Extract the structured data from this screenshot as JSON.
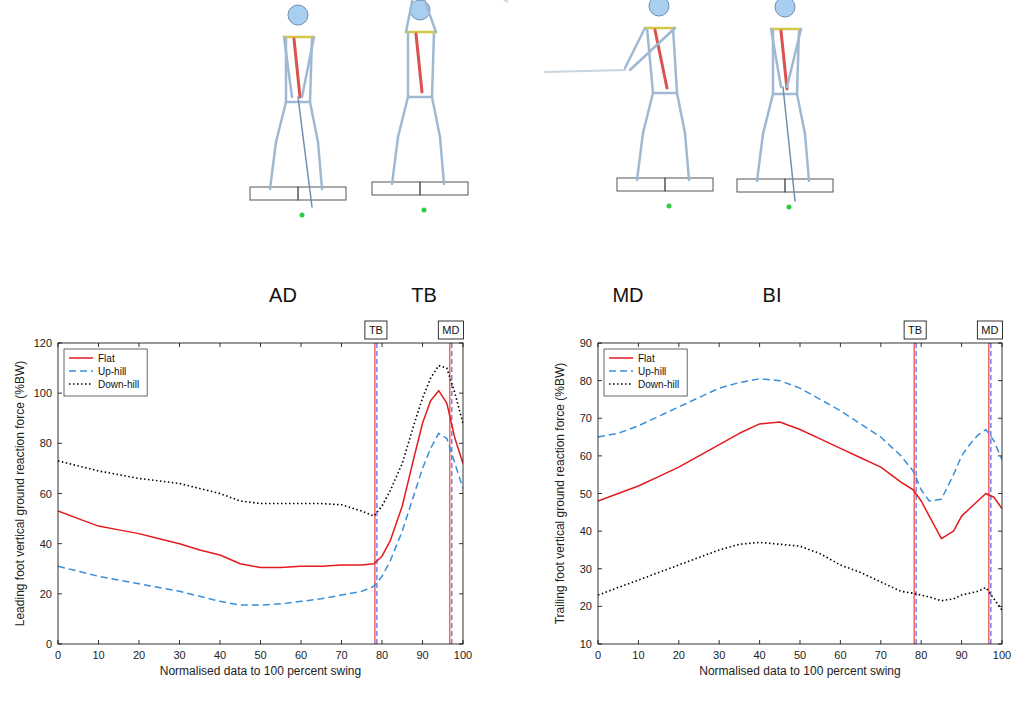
{
  "phase_labels": [
    "AD",
    "TB",
    "MD",
    "BI"
  ],
  "chart_data": [
    {
      "type": "line",
      "x_label": "Normalised data to 100 percent swing",
      "y_label": "Leading foot vertical ground reaction force (%BW)",
      "xlim": [
        0,
        100
      ],
      "xticks": [
        0,
        10,
        20,
        30,
        40,
        50,
        60,
        70,
        80,
        90,
        100
      ],
      "ylim": [
        0,
        120
      ],
      "yticks": [
        0,
        20,
        40,
        60,
        80,
        100,
        120
      ],
      "legend": "upper-left",
      "x": [
        0,
        5,
        10,
        15,
        20,
        25,
        30,
        35,
        40,
        45,
        50,
        55,
        60,
        65,
        70,
        75,
        78,
        80,
        82,
        85,
        88,
        90,
        92,
        94,
        96,
        98,
        100
      ],
      "series": [
        {
          "name": "Flat",
          "color": "#e31a1c",
          "line_style": "solid",
          "values": [
            53,
            50,
            47,
            45.5,
            44,
            42,
            40,
            37.5,
            35.5,
            32,
            30.5,
            30.5,
            31,
            31,
            31.5,
            31.5,
            32,
            35,
            41,
            55,
            75,
            88,
            97,
            101,
            96,
            82,
            72
          ]
        },
        {
          "name": "Up-hill",
          "color": "#3b8fd9",
          "line_style": "dashed",
          "values": [
            31,
            29,
            27,
            25.5,
            24,
            22.5,
            21,
            19,
            17,
            15.5,
            15.5,
            16,
            17,
            18,
            19.5,
            21,
            23,
            27,
            33,
            45,
            60,
            70,
            78,
            84,
            82,
            72,
            62
          ]
        },
        {
          "name": "Down-hill",
          "color": "#000000",
          "line_style": "dotted",
          "values": [
            73,
            71,
            69,
            67.5,
            66,
            65,
            64,
            62,
            60,
            57,
            56,
            56,
            56,
            56,
            55.5,
            53,
            51,
            55,
            61,
            72,
            88,
            98,
            106,
            111,
            110,
            100,
            88
          ]
        }
      ],
      "annotations": [
        {
          "x": 78.5,
          "label": "TB"
        },
        {
          "x": 97,
          "label": "MD"
        }
      ]
    },
    {
      "type": "line",
      "x_label": "Normalised data to 100 percent swing",
      "y_label": "Trailing foot vertical ground reaction force (%BW)",
      "xlim": [
        0,
        100
      ],
      "xticks": [
        0,
        10,
        20,
        30,
        40,
        50,
        60,
        70,
        80,
        90,
        100
      ],
      "ylim": [
        10,
        90
      ],
      "yticks": [
        10,
        20,
        30,
        40,
        50,
        60,
        70,
        80,
        90
      ],
      "legend": "upper-left",
      "x": [
        0,
        5,
        10,
        15,
        20,
        25,
        30,
        35,
        40,
        45,
        50,
        55,
        60,
        65,
        70,
        75,
        78,
        80,
        82,
        85,
        88,
        90,
        92,
        94,
        96,
        98,
        100
      ],
      "series": [
        {
          "name": "Flat",
          "color": "#e31a1c",
          "line_style": "solid",
          "values": [
            48,
            50,
            52,
            54.5,
            57,
            60,
            63,
            66,
            68.5,
            69,
            67,
            64.5,
            62,
            59.5,
            57,
            53,
            51,
            48,
            44,
            38,
            40,
            44,
            46,
            48,
            50,
            49,
            46
          ]
        },
        {
          "name": "Up-hill",
          "color": "#3b8fd9",
          "line_style": "dashed",
          "values": [
            65,
            66,
            68,
            70.5,
            73,
            75.5,
            78,
            79.5,
            80.5,
            80,
            78,
            75,
            72,
            68.5,
            65,
            60,
            56,
            51,
            48,
            48.5,
            55,
            60,
            63,
            65.5,
            67,
            64,
            59
          ]
        },
        {
          "name": "Down-hill",
          "color": "#000000",
          "line_style": "dotted",
          "values": [
            23,
            25,
            27,
            29,
            31,
            33,
            35,
            36.5,
            37,
            36.5,
            36,
            34,
            31,
            29,
            26.5,
            24,
            23.5,
            23,
            22.5,
            21.5,
            22,
            23,
            23.5,
            24,
            25,
            22,
            19
          ]
        }
      ],
      "annotations": [
        {
          "x": 78.5,
          "label": "TB"
        },
        {
          "x": 97,
          "label": "MD"
        }
      ]
    }
  ]
}
